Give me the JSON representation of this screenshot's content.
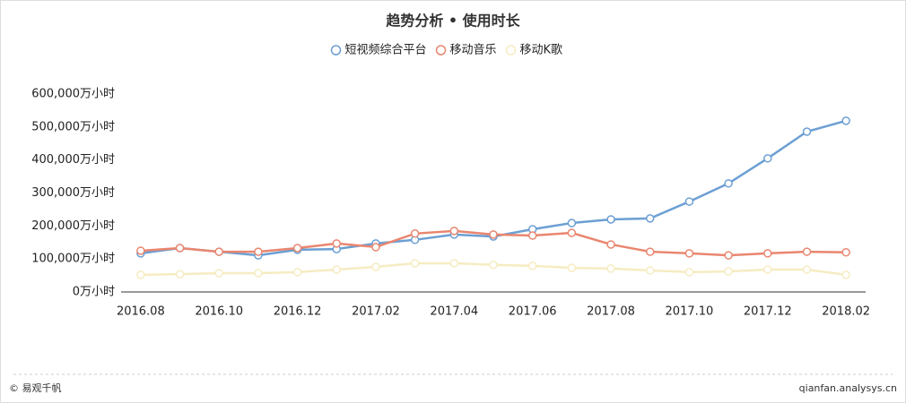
{
  "chart_data": {
    "type": "line",
    "title": "趋势分析 • 使用时长",
    "categories": [
      "2016.08",
      null,
      "2016.10",
      null,
      "2016.12",
      null,
      "2017.02",
      null,
      "2017.04",
      null,
      "2017.06",
      null,
      "2017.08",
      null,
      "2017.10",
      null,
      "2017.12",
      null,
      "2018.02"
    ],
    "series": [
      {
        "name": "短视频综合平台",
        "color": "#6c9fd3",
        "values": [
          117000,
          133000,
          122000,
          111000,
          128000,
          130000,
          147000,
          158000,
          174000,
          168000,
          190000,
          209000,
          220000,
          223000,
          274000,
          329000,
          405000,
          486000,
          519000
        ]
      },
      {
        "name": "移动音乐",
        "color": "#e9866f",
        "values": [
          125000,
          133000,
          122000,
          122000,
          133000,
          147000,
          136000,
          177000,
          185000,
          174000,
          171000,
          179000,
          144000,
          122000,
          117000,
          111000,
          117000,
          122000,
          120000
        ]
      },
      {
        "name": "移动K歌",
        "color": "#f6ecc2",
        "values": [
          52000,
          54000,
          57000,
          57000,
          60000,
          68000,
          76000,
          87000,
          87000,
          82000,
          79000,
          73000,
          71000,
          65000,
          60000,
          62000,
          68000,
          68000,
          52000
        ]
      }
    ],
    "ylim": [
      0,
      600000
    ],
    "yticks": [
      {
        "value": 0,
        "label": "0万小时"
      },
      {
        "value": 100000,
        "label": "100,000万小时"
      },
      {
        "value": 200000,
        "label": "200,000万小时"
      },
      {
        "value": 300000,
        "label": "300,000万小时"
      },
      {
        "value": 400000,
        "label": "400,000万小时"
      },
      {
        "value": 500000,
        "label": "500,000万小时"
      },
      {
        "value": 600000,
        "label": "600,000万小时"
      }
    ],
    "grid": false,
    "legend": "top",
    "footer_left": "© 易观千帆",
    "footer_right": "qianfan.analysys.cn"
  }
}
